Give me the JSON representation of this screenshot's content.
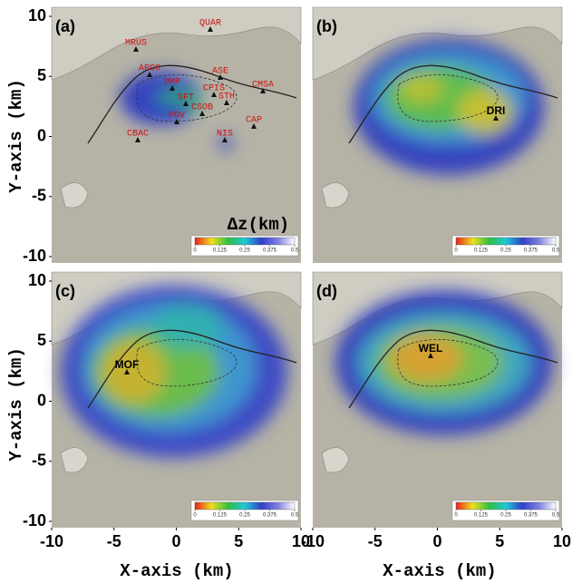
{
  "x_axis_label": "X-axis (km)",
  "y_axis_label": "Y-axis (km)",
  "xlim": [
    -10,
    10
  ],
  "ylim": [
    -10,
    10
  ],
  "xticks": [
    -10,
    -5,
    0,
    5,
    10
  ],
  "yticks": [
    -10,
    -5,
    0,
    5,
    10
  ],
  "colorbar": {
    "label": "Δz(km)",
    "lim": [
      0,
      0.5
    ],
    "ticks": [
      0,
      0.125,
      0.25,
      0.375,
      0.5
    ],
    "colors": [
      "#e8201c",
      "#f0e020",
      "#30c040",
      "#20c8d8",
      "#3040c8",
      "#8080e0",
      "#ffffff"
    ]
  },
  "panels": [
    {
      "label": "(a)",
      "stations": [
        "QUAR",
        "MRUS",
        "ARCO",
        "DMP",
        "ASE",
        "CPIS",
        "CMSA",
        "SFT",
        "STH",
        "CSOB",
        "POV",
        "CAP",
        "CBAC",
        "NIS"
      ]
    },
    {
      "label": "(b)",
      "stations": [
        "DRI"
      ]
    },
    {
      "label": "(c)",
      "stations": [
        "MOF"
      ]
    },
    {
      "label": "(d)",
      "stations": [
        "WEL"
      ]
    }
  ]
}
